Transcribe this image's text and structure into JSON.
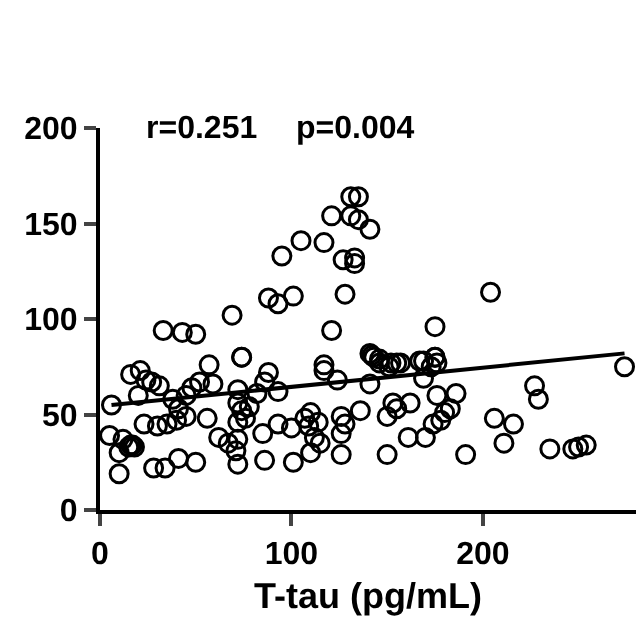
{
  "chart_data": {
    "type": "scatter",
    "xlabel": "T-tau (pg/mL)",
    "annotations": [
      "r=0.251",
      "p=0.004"
    ],
    "xlim": [
      0,
      280
    ],
    "ylim": [
      0,
      200
    ],
    "xticks": [
      0,
      100,
      200
    ],
    "yticks": [
      0,
      50,
      100,
      150,
      200
    ],
    "grid": false,
    "marker": "circle",
    "series": [
      {
        "color": "#000000",
        "x": [
          33,
          43,
          50,
          69,
          74,
          88,
          93,
          101,
          95,
          105,
          117,
          121,
          127,
          133,
          133,
          128,
          121,
          131,
          135,
          131,
          135,
          141,
          204,
          175,
          274,
          142,
          146,
          152,
          157,
          167,
          175,
          117,
          6,
          5,
          12,
          10,
          10,
          15,
          16,
          17,
          18,
          16,
          21,
          24,
          27,
          31,
          20,
          23,
          30,
          35,
          28,
          34,
          38,
          41,
          45,
          48,
          52,
          40,
          45,
          41,
          50,
          57,
          59,
          56,
          62,
          74,
          72,
          72,
          67,
          71,
          72,
          72,
          74,
          76,
          72,
          78,
          82,
          86,
          88,
          85,
          93,
          100,
          86,
          101,
          93,
          107,
          109,
          110,
          112,
          114,
          110,
          117,
          115,
          124,
          126,
          128,
          126,
          126,
          136,
          141,
          143,
          146,
          151,
          155,
          141,
          150,
          153,
          155,
          150,
          161,
          162,
          169,
          173,
          176,
          175,
          169,
          170,
          174,
          178,
          180,
          176,
          186,
          183,
          191,
          206,
          211,
          216,
          227,
          229,
          235,
          247,
          250,
          254
        ],
        "values": [
          94,
          93,
          92,
          102,
          80,
          111,
          108,
          112,
          133,
          141,
          140,
          154,
          131,
          132,
          129,
          113,
          94,
          164,
          164,
          154,
          152,
          147,
          114,
          96,
          75,
          81,
          79,
          77,
          77,
          78,
          80,
          73,
          55,
          39,
          37,
          30,
          19,
          33,
          71,
          34,
          33,
          34,
          73,
          68,
          67,
          65,
          60,
          45,
          44,
          45,
          22,
          22,
          58,
          53,
          60,
          64,
          67,
          47,
          49,
          27,
          25,
          76,
          66,
          48,
          38,
          80,
          63,
          56,
          35,
          31,
          24,
          37,
          52,
          48,
          46,
          54,
          61,
          67,
          72,
          40,
          45,
          43,
          26,
          25,
          62,
          48,
          44,
          51,
          38,
          46,
          30,
          76,
          35,
          68,
          49,
          45,
          40,
          29,
          52,
          82,
          80,
          77,
          75,
          77,
          66,
          49,
          56,
          53,
          29,
          38,
          56,
          78,
          75,
          77,
          80,
          69,
          38,
          45,
          47,
          51,
          60,
          61,
          53,
          29,
          48,
          35,
          45,
          65,
          58,
          32,
          32,
          33,
          34
        ]
      },
      {
        "type": "line",
        "color": "#000000",
        "marker": "none",
        "x": [
          6,
          274
        ],
        "values": [
          55,
          82
        ]
      }
    ]
  }
}
